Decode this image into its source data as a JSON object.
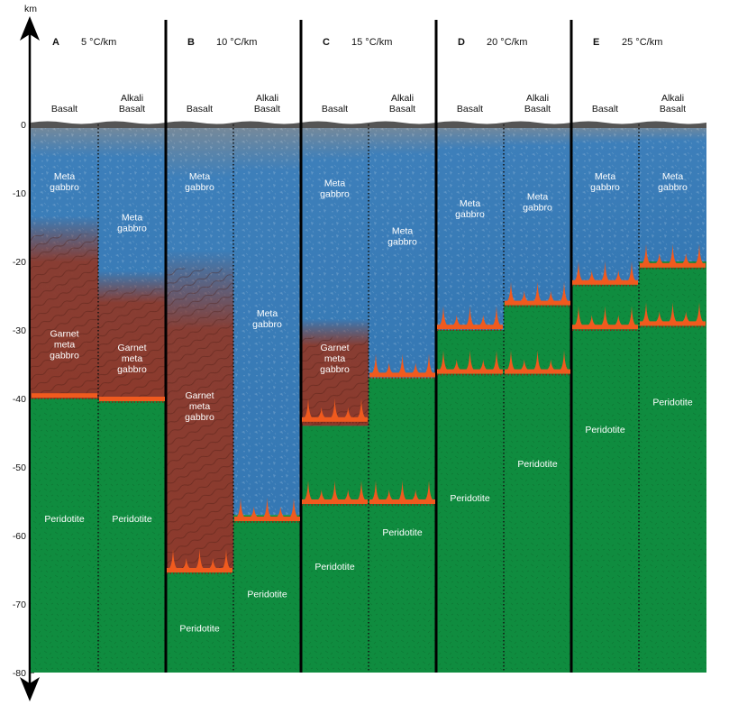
{
  "axis": {
    "unit": "km",
    "ticks": [
      "0",
      "-10",
      "-20",
      "-30",
      "-40",
      "-50",
      "-60",
      "-70",
      "-80"
    ],
    "range_km": [
      0,
      -80
    ]
  },
  "colors": {
    "peridotite": "#0f8c3f",
    "metagabbro": "#3f7fb8",
    "garnet_metagabbro": "#8c3a2c",
    "melt": "#f05a1e",
    "basalt_crust": "#555555"
  },
  "panels": [
    {
      "letter": "A",
      "gradient": "5 °C/km",
      "columns": [
        {
          "header": [
            "Basalt"
          ],
          "labels": [
            {
              "lines": [
                "Meta",
                "gabbro"
              ],
              "depth_km": -8
            },
            {
              "lines": [
                "Garnet",
                "meta",
                "gabbro"
              ],
              "depth_km": -31
            },
            {
              "lines": [
                "Peridotite"
              ],
              "depth_km": -58
            }
          ],
          "layers": {
            "blue_to": -16,
            "garnet_to": -40,
            "peridotite_top": -40
          }
        },
        {
          "header": [
            "Alkali",
            "Basalt"
          ],
          "labels": [
            {
              "lines": [
                "Meta",
                "gabbro"
              ],
              "depth_km": -14
            },
            {
              "lines": [
                "Garnet",
                "meta",
                "gabbro"
              ],
              "depth_km": -33
            },
            {
              "lines": [
                "Peridotite"
              ],
              "depth_km": -58
            }
          ],
          "layers": {
            "blue_to": -24,
            "garnet_to": -40,
            "peridotite_top": -40
          }
        }
      ]
    },
    {
      "letter": "B",
      "gradient": "10 °C/km",
      "columns": [
        {
          "header": [
            "Basalt"
          ],
          "labels": [
            {
              "lines": [
                "Meta",
                "gabbro"
              ],
              "depth_km": -8
            },
            {
              "lines": [
                "Garnet",
                "meta",
                "gabbro"
              ],
              "depth_km": -40
            },
            {
              "lines": [
                "Peridotite"
              ],
              "depth_km": -74
            }
          ],
          "layers": {
            "blue_to": -21,
            "garnet_to": -65,
            "peridotite_top": -65
          }
        },
        {
          "header": [
            "Alkali",
            "Basalt"
          ],
          "labels": [
            {
              "lines": [
                "Meta",
                "gabbro"
              ],
              "depth_km": -28
            },
            {
              "lines": [
                "Peridotite"
              ],
              "depth_km": -69
            }
          ],
          "layers": {
            "blue_to": -57,
            "garnet_to": -57,
            "peridotite_top": -57
          }
        }
      ]
    },
    {
      "letter": "C",
      "gradient": "15 °C/km",
      "columns": [
        {
          "header": [
            "Basalt"
          ],
          "labels": [
            {
              "lines": [
                "Meta",
                "gabbro"
              ],
              "depth_km": -9
            },
            {
              "lines": [
                "Garnet",
                "meta",
                "gabbro"
              ],
              "depth_km": -33
            },
            {
              "lines": [
                "Peridotite"
              ],
              "depth_km": -65
            }
          ],
          "layers": {
            "blue_to": -31,
            "garnet_to": -44,
            "peridotite_top": -44
          }
        },
        {
          "header": [
            "Alkali",
            "Basalt"
          ],
          "labels": [
            {
              "lines": [
                "Meta",
                "gabbro"
              ],
              "depth_km": -16
            },
            {
              "lines": [
                "Peridotite"
              ],
              "depth_km": -60
            }
          ],
          "layers": {
            "blue_to": -37,
            "garnet_to": -37,
            "peridotite_top": -37
          }
        }
      ]
    },
    {
      "letter": "D",
      "gradient": "20 °C/km",
      "columns": [
        {
          "header": [
            "Basalt"
          ],
          "labels": [
            {
              "lines": [
                "Meta",
                "gabbro"
              ],
              "depth_km": -12
            },
            {
              "lines": [
                "Peridotite"
              ],
              "depth_km": -55
            }
          ],
          "layers": {
            "blue_to": -30,
            "garnet_to": -30,
            "peridotite_top": -30
          }
        },
        {
          "header": [
            "Alkali",
            "Basalt"
          ],
          "labels": [
            {
              "lines": [
                "Meta",
                "gabbro"
              ],
              "depth_km": -11
            },
            {
              "lines": [
                "Peridotite"
              ],
              "depth_km": -50
            }
          ],
          "layers": {
            "blue_to": -26,
            "garnet_to": -26,
            "peridotite_top": -26
          }
        }
      ]
    },
    {
      "letter": "E",
      "gradient": "25 °C/km",
      "columns": [
        {
          "header": [
            "Basalt"
          ],
          "labels": [
            {
              "lines": [
                "Meta",
                "gabbro"
              ],
              "depth_km": -8
            },
            {
              "lines": [
                "Peridotite"
              ],
              "depth_km": -45
            }
          ],
          "layers": {
            "blue_to": -23,
            "garnet_to": -23,
            "peridotite_top": -23
          }
        },
        {
          "header": [
            "Alkali",
            "Basalt"
          ],
          "labels": [
            {
              "lines": [
                "Meta",
                "gabbro"
              ],
              "depth_km": -8
            },
            {
              "lines": [
                "Peridotite"
              ],
              "depth_km": -41
            }
          ],
          "layers": {
            "blue_to": -20,
            "garnet_to": -20,
            "peridotite_top": -20
          }
        }
      ]
    }
  ],
  "melt_fronts": [
    {
      "panel": 0,
      "col": 0,
      "depth_km": -39.5
    },
    {
      "panel": 0,
      "col": 1,
      "depth_km": -40
    },
    {
      "panel": 1,
      "col": 0,
      "depth_km": -65,
      "spikes": true
    },
    {
      "panel": 1,
      "col": 1,
      "depth_km": -57.5,
      "spikes": true
    },
    {
      "panel": 2,
      "col": 0,
      "depth_km": -43,
      "spikes": true
    },
    {
      "panel": 2,
      "col": 0,
      "depth_km": -55,
      "spikes": true
    },
    {
      "panel": 2,
      "col": 1,
      "depth_km": -36.5,
      "spikes": true
    },
    {
      "panel": 2,
      "col": 1,
      "depth_km": -55,
      "spikes": true
    },
    {
      "panel": 3,
      "col": 0,
      "depth_km": -29.5,
      "spikes": true
    },
    {
      "panel": 3,
      "col": 0,
      "depth_km": -36,
      "spikes": true
    },
    {
      "panel": 3,
      "col": 1,
      "depth_km": -26,
      "spikes": true
    },
    {
      "panel": 3,
      "col": 1,
      "depth_km": -36,
      "spikes": true
    },
    {
      "panel": 4,
      "col": 0,
      "depth_km": -23,
      "spikes": true
    },
    {
      "panel": 4,
      "col": 0,
      "depth_km": -29.5,
      "spikes": true
    },
    {
      "panel": 4,
      "col": 1,
      "depth_km": -20.5,
      "spikes": true
    },
    {
      "panel": 4,
      "col": 1,
      "depth_km": -29,
      "spikes": true
    }
  ]
}
